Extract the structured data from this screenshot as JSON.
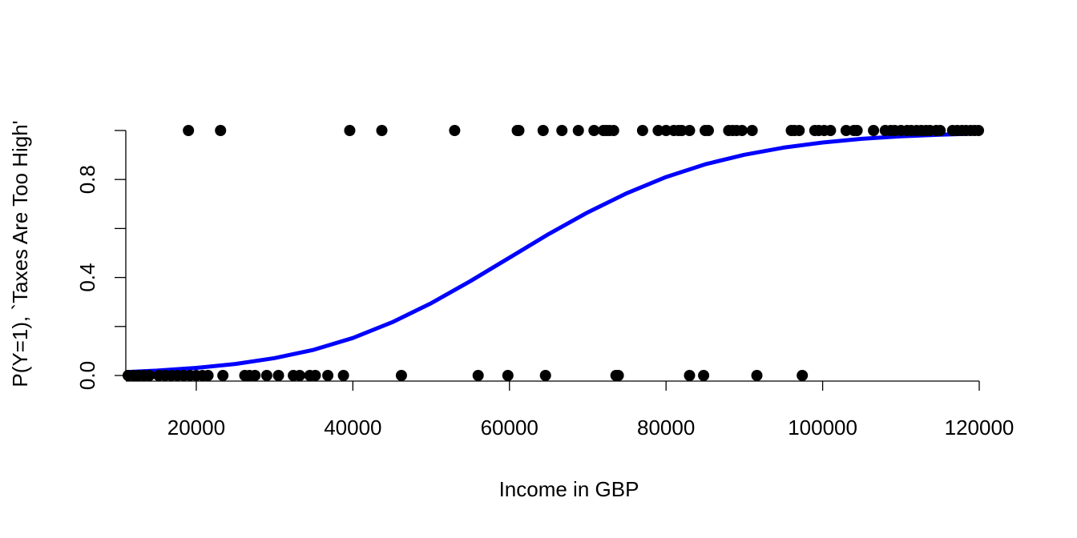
{
  "chart_data": {
    "type": "scatter",
    "title": "",
    "xlabel": "Income in GBP",
    "ylabel": "P(Y=1), `Taxes Are Too High'",
    "xlim": [
      11000,
      120000
    ],
    "ylim": [
      0,
      1
    ],
    "x_ticks": [
      20000,
      40000,
      60000,
      80000,
      100000,
      120000
    ],
    "x_tick_labels": [
      "20000",
      "40000",
      "60000",
      "80000",
      "100000",
      "120000"
    ],
    "y_ticks": [
      0,
      0.2,
      0.4,
      0.6,
      0.8,
      1.0
    ],
    "y_tick_labels": [
      "0.0",
      "",
      "0.4",
      "",
      "0.8",
      ""
    ],
    "grid": false,
    "point_color": "#000000",
    "curve_color": "#0000ff",
    "points_y1": [
      19000,
      23100,
      39600,
      43700,
      53000,
      61000,
      61200,
      64300,
      66700,
      68800,
      70800,
      72000,
      72400,
      72800,
      73300,
      77000,
      79000,
      80000,
      81000,
      81600,
      82000,
      83000,
      85000,
      85400,
      88000,
      88500,
      89000,
      89700,
      91000,
      96000,
      96400,
      97000,
      99000,
      99500,
      100200,
      101000,
      103000,
      104000,
      104400,
      106500,
      108000,
      108700,
      109200,
      110000,
      110800,
      111300,
      112000,
      112600,
      113200,
      113700,
      114500,
      115000,
      116600,
      117200,
      117800,
      118300,
      118900,
      119400,
      119900
    ],
    "points_y0": [
      11300,
      12000,
      12600,
      13300,
      14000,
      15200,
      16000,
      16800,
      17600,
      18400,
      19200,
      20000,
      20800,
      21500,
      23400,
      26200,
      26800,
      27500,
      29000,
      30500,
      32400,
      33200,
      34500,
      35200,
      36800,
      38800,
      46200,
      56000,
      59800,
      64600,
      73600,
      73900,
      83000,
      84800,
      91600,
      97400
    ],
    "curve": {
      "x": [
        11000,
        15000,
        20000,
        25000,
        30000,
        35000,
        40000,
        45000,
        50000,
        55000,
        60000,
        65000,
        70000,
        75000,
        80000,
        85000,
        90000,
        95000,
        100000,
        105000,
        110000,
        115000,
        120000
      ],
      "y": [
        0.014,
        0.02,
        0.031,
        0.047,
        0.071,
        0.105,
        0.153,
        0.217,
        0.295,
        0.385,
        0.481,
        0.577,
        0.666,
        0.744,
        0.81,
        0.862,
        0.901,
        0.93,
        0.951,
        0.966,
        0.976,
        0.983,
        0.988
      ]
    }
  }
}
